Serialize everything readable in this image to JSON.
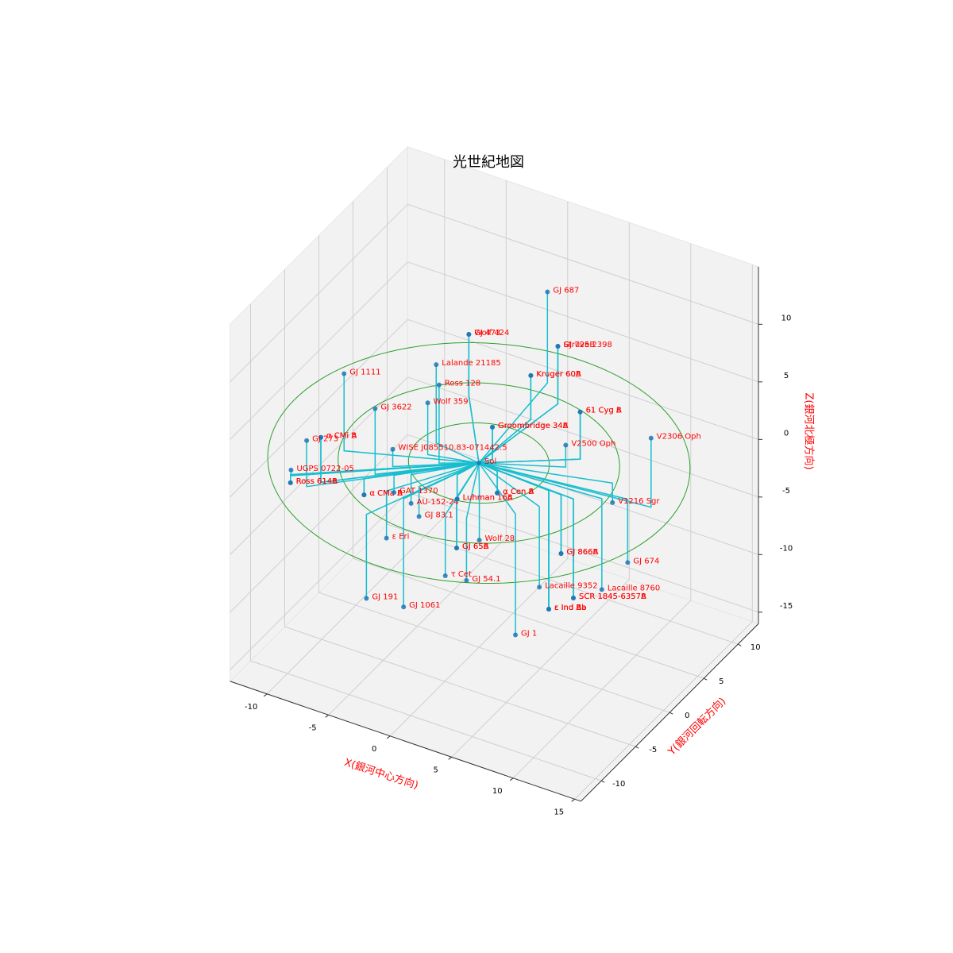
{
  "chart_data": {
    "type": "scatter3d",
    "title": "光世紀地図",
    "xlabel": "X(銀河中心方向)",
    "ylabel": "Y(銀河回転方向)",
    "zlabel": "Z(銀河北極方向)",
    "xlim": [
      -13,
      15.5
    ],
    "ylim": [
      -13,
      13
    ],
    "zlim": [
      -16,
      15
    ],
    "xticks": [
      -10,
      -5,
      0,
      5,
      10,
      15
    ],
    "yticks": [
      -10,
      -5,
      0,
      5,
      10
    ],
    "zticks": [
      -15,
      -10,
      -5,
      0,
      5,
      10
    ],
    "color": "#1f77b4",
    "line_color": "#17becf",
    "ring_color": "#2ca02c",
    "label_color": "#ff0000",
    "rings": [
      5,
      10,
      15
    ],
    "names": [
      "Sol",
      "GJ 687",
      "GJ 473",
      "Wolf 424",
      "GJ 725B",
      "Struve 2398",
      "Lalande 21185",
      "Kruger 60A",
      "Kruger 60B",
      "Ross 128",
      "GJ 1111",
      "Wolf 359",
      "GJ 3622",
      "61 Cyg A",
      "61 Cyg B",
      "Groombridge 34A",
      "Groombridge 34B",
      "V2306 Oph",
      "V2500 Oph",
      "α CMi A",
      "α CMi B",
      "GJ 273",
      "WISE J085510.83-071442.5",
      "UGPS 0722-05",
      "Ross 614A",
      "Ross 614B",
      "α CMa A",
      "α CMa B",
      "GAT 1370",
      "AU-152-24",
      "Luhman 16A",
      "Luhman 16B",
      "α Cen A",
      "α Cen B",
      "V1216 Sgr",
      "GJ 83.1",
      "ε Eri",
      "Wolf 28",
      "GJ 65A",
      "GJ 65B",
      "GJ 866A",
      "GJ 866B",
      "GJ 674",
      "τ Cet",
      "GJ 54.1",
      "Lacaille 9352",
      "SCR 1845-6357A",
      "SCR 1845-6357B",
      "Lacaille 8760",
      "GJ 191",
      "GJ 1061",
      "ε Ind A",
      "ε Ind Ba",
      "ε Ind Bb",
      "GJ 1"
    ],
    "x": [
      0,
      -0.7,
      -4.7,
      -4.7,
      1.2,
      1.2,
      -3.8,
      0.5,
      0.5,
      -2.4,
      -8.9,
      -3.6,
      -5.6,
      5.9,
      5.9,
      0.6,
      0.6,
      13.1,
      5.5,
      -8.4,
      -8.4,
      -9.0,
      -5.0,
      -10.6,
      -10.7,
      -10.7,
      -6.0,
      -6.0,
      -4.4,
      -3.4,
      -0.6,
      -0.6,
      1.6,
      1.6,
      9.3,
      -2.2,
      -3.9,
      1.7,
      0.8,
      0.8,
      6.9,
      6.9,
      11.2,
      1.1,
      2.6,
      6.3,
      7.9,
      7.9,
      9.6,
      -3.7,
      -2.4,
      5.9,
      5.9,
      5.9,
      5.3
    ],
    "y": [
      0,
      11.3,
      7.0,
      7.0,
      9.4,
      9.4,
      0.6,
      6.7,
      6.7,
      -1.5,
      -3.7,
      -1.0,
      -5.1,
      4.2,
      4.2,
      0.9,
      0.9,
      1.6,
      2.8,
      -8.0,
      -8.0,
      -9.0,
      -3.6,
      -8.4,
      -8.3,
      -8.3,
      -6.0,
      -6.0,
      -4.5,
      -3.8,
      -2.1,
      -2.1,
      -0.2,
      -0.2,
      2.8,
      -4.8,
      -6.5,
      -3.0,
      -4.7,
      -4.7,
      -0.4,
      -0.4,
      1.6,
      -6.9,
      -6.5,
      -2.5,
      -0.4,
      -0.4,
      0.7,
      -9.8,
      -6.7,
      -0.4,
      -0.4,
      -0.4,
      -4.2
    ],
    "z": [
      0,
      7.9,
      5.3,
      5.3,
      5.0,
      5.0,
      6.8,
      3.8,
      3.8,
      6.8,
      6.7,
      4.5,
      5.7,
      4.1,
      4.1,
      2.8,
      2.8,
      6.0,
      1.9,
      3.9,
      3.9,
      4.0,
      1.5,
      0.5,
      -0.7,
      -0.7,
      -1.4,
      -1.4,
      -1.5,
      -2.5,
      -2.1,
      -2.1,
      -1.9,
      -1.9,
      -1.7,
      -2.6,
      -4.1,
      -4.3,
      -4.3,
      -4.3,
      -5.1,
      -5.1,
      -5.5,
      -5.3,
      -5.4,
      -7.0,
      -8.6,
      -8.6,
      -7.9,
      -7.3,
      -9.4,
      -10.3,
      -10.3,
      -10.3,
      -10.5
    ]
  }
}
